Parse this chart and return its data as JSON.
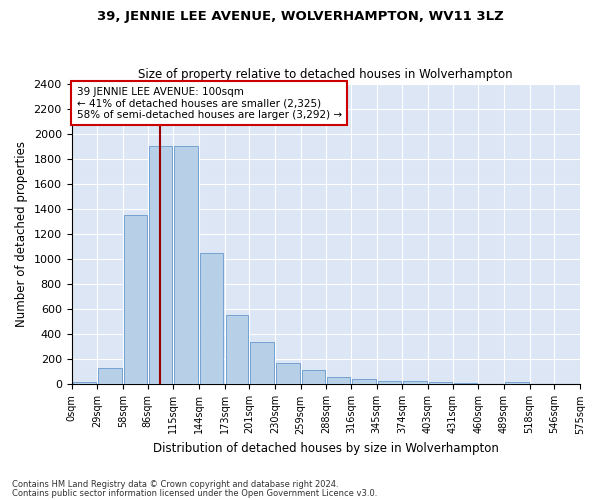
{
  "title": "39, JENNIE LEE AVENUE, WOLVERHAMPTON, WV11 3LZ",
  "subtitle": "Size of property relative to detached houses in Wolverhampton",
  "xlabel": "Distribution of detached houses by size in Wolverhampton",
  "ylabel": "Number of detached properties",
  "bar_color": "#b8cfe8",
  "bar_edge_color": "#6699cc",
  "background_color": "#dce6f5",
  "grid_color": "#ffffff",
  "vline_x": 100,
  "vline_color": "#990000",
  "annotation_text": "39 JENNIE LEE AVENUE: 100sqm\n← 41% of detached houses are smaller (2,325)\n58% of semi-detached houses are larger (3,292) →",
  "annotation_box_color": "#ffffff",
  "annotation_border_color": "#cc0000",
  "bin_edges": [
    0,
    29,
    58,
    86,
    115,
    144,
    173,
    201,
    230,
    259,
    288,
    316,
    345,
    374,
    403,
    431,
    460,
    489,
    518,
    546,
    575
  ],
  "bin_labels": [
    "0sqm",
    "29sqm",
    "58sqm",
    "86sqm",
    "115sqm",
    "144sqm",
    "173sqm",
    "201sqm",
    "230sqm",
    "259sqm",
    "288sqm",
    "316sqm",
    "345sqm",
    "374sqm",
    "403sqm",
    "431sqm",
    "460sqm",
    "489sqm",
    "518sqm",
    "546sqm",
    "575sqm"
  ],
  "bar_heights": [
    20,
    130,
    1350,
    1900,
    1900,
    1050,
    550,
    340,
    175,
    115,
    60,
    40,
    30,
    25,
    20,
    15,
    0,
    20,
    0,
    0,
    20
  ],
  "ylim": [
    0,
    2400
  ],
  "yticks": [
    0,
    200,
    400,
    600,
    800,
    1000,
    1200,
    1400,
    1600,
    1800,
    2000,
    2200,
    2400
  ],
  "footer1": "Contains HM Land Registry data © Crown copyright and database right 2024.",
  "footer2": "Contains public sector information licensed under the Open Government Licence v3.0.",
  "fig_width": 6.0,
  "fig_height": 5.0,
  "dpi": 100
}
